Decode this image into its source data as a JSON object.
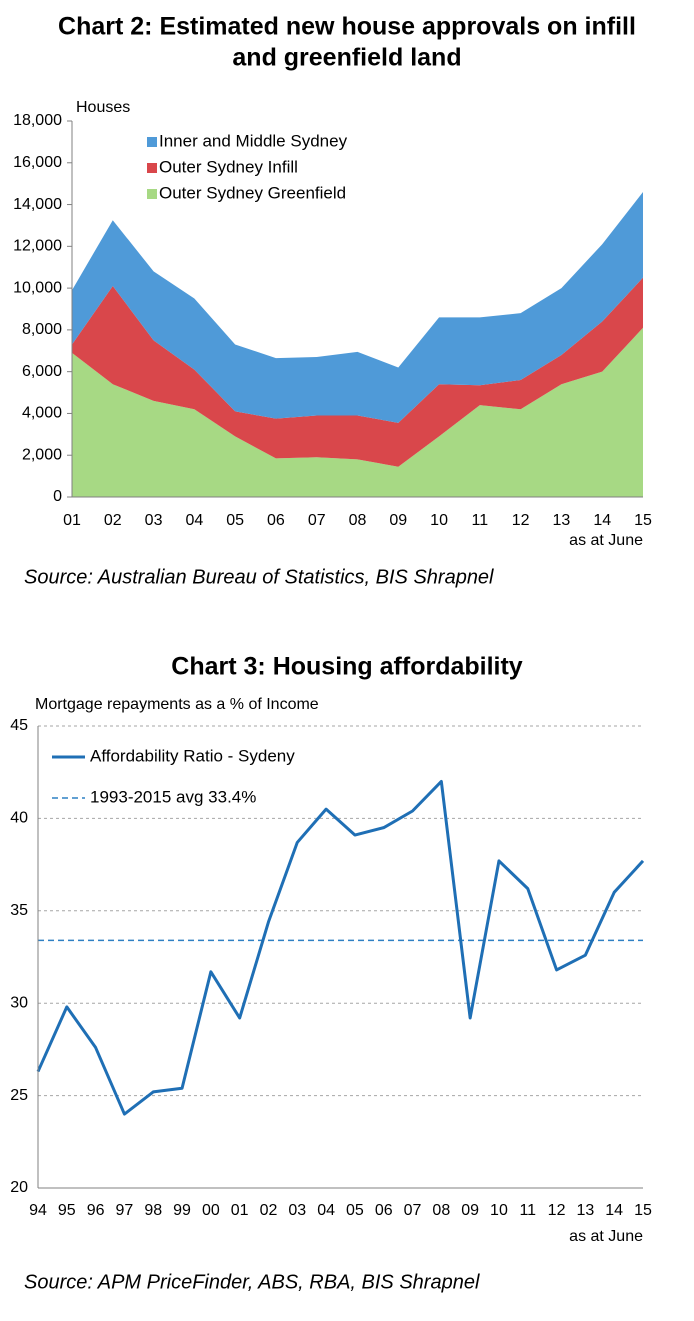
{
  "chart_data": [
    {
      "type": "area",
      "title": [
        "Chart 2: Estimated new house approvals on infill",
        "and greenfield land"
      ],
      "y_label": "Houses",
      "x_note": "as at June",
      "source": "Source: Australian Bureau of Statistics, BIS Shrapnel",
      "categories": [
        "01",
        "02",
        "03",
        "04",
        "05",
        "06",
        "07",
        "08",
        "09",
        "10",
        "11",
        "12",
        "13",
        "14",
        "15"
      ],
      "series": [
        {
          "name": "Inner and Middle Sydney",
          "color": "#4f9ad8",
          "values": [
            2600,
            3150,
            3300,
            3400,
            3200,
            2900,
            2800,
            3050,
            2650,
            3200,
            3250,
            3200,
            3200,
            3700,
            4100
          ]
        },
        {
          "name": "Outer Sydney Infill",
          "color": "#d9474b",
          "values": [
            400,
            4700,
            2900,
            1900,
            1200,
            1900,
            2000,
            2100,
            2100,
            2500,
            950,
            1400,
            1400,
            2400,
            2400
          ]
        },
        {
          "name": "Outer Sydney Greenfield",
          "color": "#a7d984",
          "values": [
            6900,
            5400,
            4600,
            4200,
            2900,
            1850,
            1900,
            1800,
            1450,
            2900,
            4400,
            4200,
            5400,
            6000,
            8100
          ]
        }
      ],
      "ylim": [
        0,
        18000
      ],
      "yticks": [
        0,
        {
          "value": 2000,
          "label": "2,000"
        },
        {
          "value": 4000,
          "label": "4,000"
        },
        {
          "value": 6000,
          "label": "6,000"
        },
        {
          "value": 8000,
          "label": "8,000"
        },
        {
          "value": 10000,
          "label": "10,000"
        },
        {
          "value": 12000,
          "label": "12,000"
        },
        {
          "value": 14000,
          "label": "14,000"
        },
        {
          "value": 16000,
          "label": "16,000"
        },
        {
          "value": 18000,
          "label": "18,000"
        }
      ],
      "grid": false
    },
    {
      "type": "line",
      "title": [
        "Chart 3: Housing affordability"
      ],
      "y_label": "Mortgage repayments as a % of Income",
      "x_note": "as at June",
      "source": "Source: APM PriceFinder, ABS, RBA, BIS Shrapnel",
      "categories": [
        "94",
        "95",
        "96",
        "97",
        "98",
        "99",
        "00",
        "01",
        "02",
        "03",
        "04",
        "05",
        "06",
        "07",
        "08",
        "09",
        "10",
        "11",
        "12",
        "13",
        "14",
        "15"
      ],
      "series": [
        {
          "name": "Affordability Ratio - Sydeny",
          "color": "#1f6fb5",
          "values": [
            26.3,
            29.8,
            27.6,
            24.0,
            25.2,
            25.4,
            31.7,
            29.2,
            34.4,
            38.7,
            40.5,
            39.1,
            39.5,
            40.4,
            42.0,
            29.2,
            37.7,
            36.2,
            31.8,
            32.6,
            36.0,
            37.7
          ]
        }
      ],
      "reference_line": {
        "name": "1993-2015 avg 33.4%",
        "value": 33.4,
        "color": "#2f80c4",
        "dashed": true
      },
      "ylim": [
        20,
        45
      ],
      "yticks": [
        20,
        25,
        30,
        35,
        40,
        45
      ],
      "grid": true
    }
  ]
}
